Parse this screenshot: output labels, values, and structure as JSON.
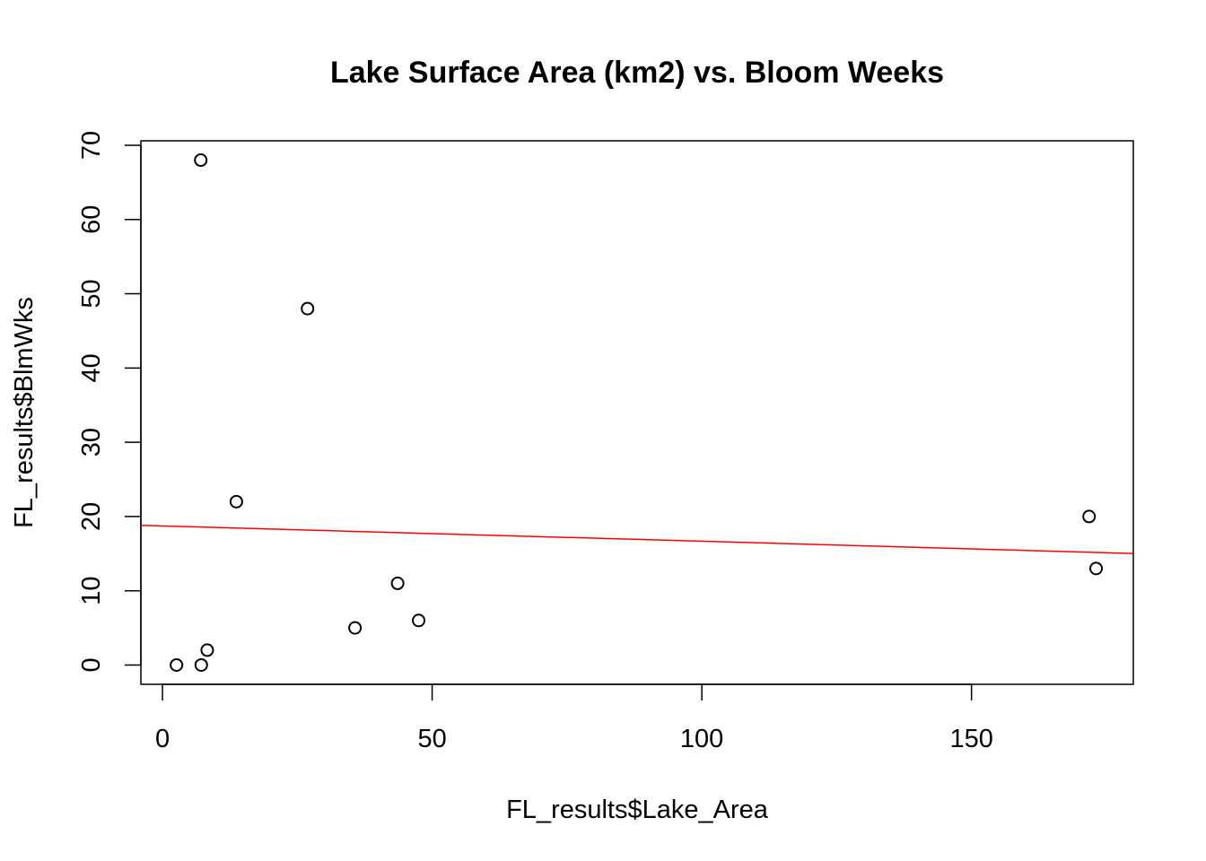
{
  "chart_data": {
    "type": "scatter",
    "title": "Lake Surface Area (km2) vs. Bloom Weeks",
    "xlabel": "FL_results$Lake_Area",
    "ylabel": "FL_results$BlmWks",
    "xlim": [
      -4,
      180
    ],
    "ylim": [
      -2.6,
      70.6
    ],
    "x_ticks": [
      0,
      50,
      100,
      150
    ],
    "y_ticks": [
      0,
      10,
      20,
      30,
      40,
      50,
      60,
      70
    ],
    "points": [
      {
        "x": 2.6,
        "y": 0
      },
      {
        "x": 7.2,
        "y": 0
      },
      {
        "x": 8.3,
        "y": 2
      },
      {
        "x": 7.1,
        "y": 68
      },
      {
        "x": 13.7,
        "y": 22
      },
      {
        "x": 26.9,
        "y": 48
      },
      {
        "x": 35.7,
        "y": 5
      },
      {
        "x": 43.6,
        "y": 11
      },
      {
        "x": 47.5,
        "y": 6
      },
      {
        "x": 171.8,
        "y": 20
      },
      {
        "x": 173.1,
        "y": 13
      }
    ],
    "regression_line": {
      "color": "#ff0000",
      "intercept": 18.73,
      "slope": -0.0206,
      "x_range": [
        -4,
        180
      ]
    },
    "point_style": {
      "shape": "open-circle",
      "color": "#000000"
    },
    "grid": false
  }
}
